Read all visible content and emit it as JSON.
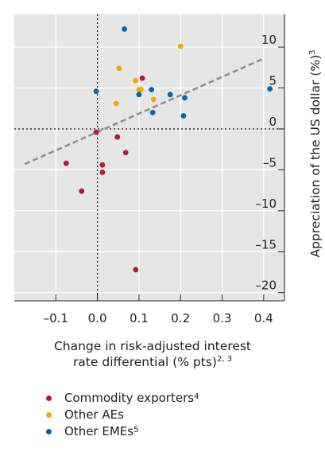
{
  "chart_data": {
    "type": "scatter",
    "xlabel_line1": "Change in risk-adjusted interest",
    "xlabel_line2": "rate differential (% pts)",
    "xlabel_sup": "2, 3",
    "ylabel": "Appreciation of the US dollar (%)",
    "ylabel_sup": "3",
    "xlim": [
      -0.2,
      0.45
    ],
    "ylim": [
      -21,
      14
    ],
    "xticks": [
      -0.1,
      0.0,
      0.1,
      0.2,
      0.3,
      0.4
    ],
    "xtick_labels": [
      "–0.1",
      "0.0",
      "0.1",
      "0.2",
      "0.3",
      "0.4"
    ],
    "yticks": [
      -20,
      -15,
      -10,
      -5,
      0,
      5,
      10
    ],
    "ytick_labels": [
      "–20",
      "–15",
      "–10",
      "–5",
      "0",
      "5",
      "10"
    ],
    "grid": true,
    "zero_lines": "dotted",
    "trend_line": {
      "x": [
        -0.175,
        0.4
      ],
      "y": [
        -4.3,
        8.6
      ]
    },
    "series": [
      {
        "name": "Commodity exporters",
        "sup": "4",
        "color": "#b5183a",
        "points": [
          [
            -0.075,
            -4.2
          ],
          [
            -0.038,
            -7.6
          ],
          [
            -0.003,
            -0.4
          ],
          [
            0.012,
            -4.4
          ],
          [
            0.012,
            -5.3
          ],
          [
            0.048,
            -1.0
          ],
          [
            0.068,
            -2.9
          ],
          [
            0.108,
            6.2
          ],
          [
            0.092,
            -17.2
          ]
        ]
      },
      {
        "name": "Other AEs",
        "sup": "",
        "color": "#f5a800",
        "points": [
          [
            0.052,
            7.4
          ],
          [
            0.045,
            3.1
          ],
          [
            0.092,
            5.9
          ],
          [
            0.1,
            4.8
          ],
          [
            0.105,
            4.8
          ],
          [
            0.135,
            3.6
          ],
          [
            0.2,
            10.1
          ]
        ]
      },
      {
        "name": "Other EMEs",
        "sup": "5",
        "color": "#0067b1",
        "points": [
          [
            -0.003,
            4.6
          ],
          [
            0.065,
            12.2
          ],
          [
            0.1,
            4.2
          ],
          [
            0.13,
            4.8
          ],
          [
            0.133,
            2.0
          ],
          [
            0.175,
            4.2
          ],
          [
            0.21,
            3.8
          ],
          [
            0.207,
            1.6
          ],
          [
            0.415,
            4.9
          ]
        ]
      }
    ]
  }
}
